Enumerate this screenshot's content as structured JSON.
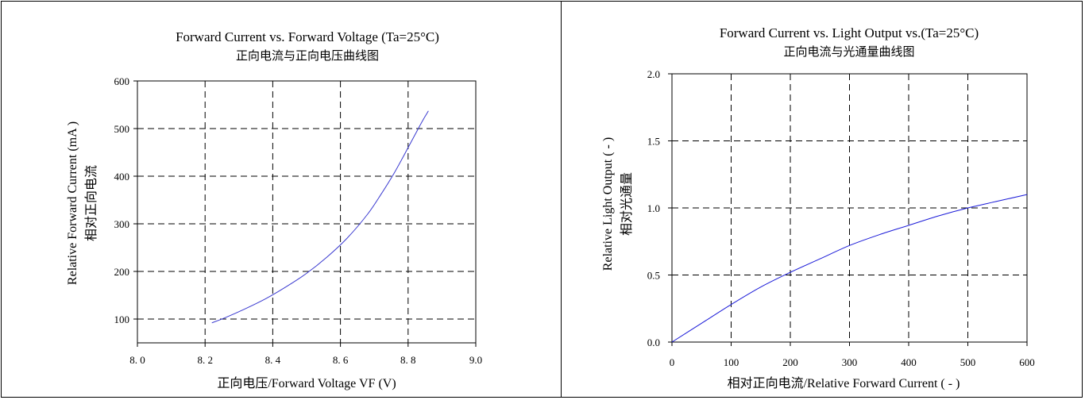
{
  "chart_data": [
    {
      "type": "line",
      "title": "Forward Current vs. Forward Voltage (Ta=25°C)",
      "subtitle": "正向电流与正向电压曲线图",
      "xlabel": "正向电压/Forward Voltage  VF (V)",
      "ylabel": "Relative Forward Current  (mA )",
      "ylabel_secondary": "相对正向电流",
      "xlim": [
        8.0,
        9.0
      ],
      "ylim": [
        50,
        600
      ],
      "x_ticks": [
        8.0,
        8.2,
        8.4,
        8.6,
        8.8,
        9.0
      ],
      "x_tick_labels": [
        "8. 0",
        "8. 2",
        "8. 4",
        "8. 6",
        "8. 8",
        "9.0"
      ],
      "y_ticks": [
        100,
        200,
        300,
        400,
        500,
        600
      ],
      "y_tick_labels": [
        "100",
        "200",
        "300",
        "400",
        "500",
        "600"
      ],
      "grid": true,
      "series_color": "#3a3ad0",
      "series": [
        {
          "x": [
            8.22,
            8.26,
            8.32,
            8.38,
            8.44,
            8.5,
            8.56,
            8.62,
            8.68,
            8.72,
            8.76,
            8.8,
            8.84,
            8.86
          ],
          "y": [
            92,
            103,
            122,
            143,
            168,
            196,
            230,
            270,
            320,
            362,
            408,
            460,
            513,
            537
          ]
        }
      ]
    },
    {
      "type": "line",
      "title": "Forward Current vs. Light Output vs.(Ta=25°C)",
      "subtitle": "正向电流与光通量曲线图",
      "xlabel": "相对正向电流/Relative Forward Current  ( - )",
      "ylabel": "Relative Light Output ( - )",
      "ylabel_secondary": "相对光通量",
      "xlim": [
        0,
        600
      ],
      "ylim": [
        0.0,
        2.0
      ],
      "x_ticks": [
        0,
        100,
        200,
        300,
        400,
        500,
        600
      ],
      "x_tick_labels": [
        "0",
        "100",
        "200",
        "300",
        "400",
        "500",
        "600"
      ],
      "y_ticks": [
        0.0,
        0.5,
        1.0,
        1.5,
        2.0
      ],
      "y_tick_labels": [
        "0.0",
        "0.5",
        "1.0",
        "1.5",
        "2.0"
      ],
      "grid": true,
      "series_color": "#1a1ad8",
      "series": [
        {
          "x": [
            0,
            50,
            100,
            150,
            200,
            250,
            300,
            350,
            400,
            450,
            500,
            550,
            600
          ],
          "y": [
            0.0,
            0.14,
            0.28,
            0.41,
            0.52,
            0.62,
            0.72,
            0.8,
            0.87,
            0.94,
            1.0,
            1.05,
            1.1
          ]
        }
      ]
    }
  ]
}
